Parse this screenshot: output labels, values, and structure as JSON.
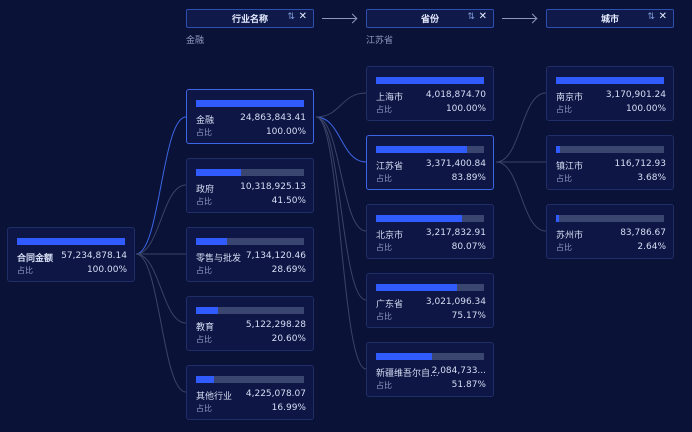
{
  "headers": [
    {
      "title": "行业名称",
      "sort_icon": "⇅",
      "close_icon": "✕",
      "filter": "金融"
    },
    {
      "title": "省份",
      "sort_icon": "⇅",
      "close_icon": "✕",
      "filter": "江苏省"
    },
    {
      "title": "城市",
      "sort_icon": "⇅",
      "close_icon": "✕",
      "filter": ""
    }
  ],
  "root": {
    "name": "合同金额",
    "value": "57,234,878.14",
    "ratio_label": "占比",
    "ratio": "100.00%",
    "fraction": 1.0
  },
  "industries": [
    {
      "name": "金融",
      "value": "24,863,843.41",
      "ratio_label": "占比",
      "ratio": "100.00%",
      "fraction": 1.0
    },
    {
      "name": "政府",
      "value": "10,318,925.13",
      "ratio_label": "占比",
      "ratio": "41.50%",
      "fraction": 0.415
    },
    {
      "name": "零售与批发",
      "value": "7,134,120.46",
      "ratio_label": "占比",
      "ratio": "28.69%",
      "fraction": 0.2869
    },
    {
      "name": "教育",
      "value": "5,122,298.28",
      "ratio_label": "占比",
      "ratio": "20.60%",
      "fraction": 0.206
    },
    {
      "name": "其他行业",
      "value": "4,225,078.07",
      "ratio_label": "占比",
      "ratio": "16.99%",
      "fraction": 0.1699
    }
  ],
  "provinces": [
    {
      "name": "上海市",
      "value": "4,018,874.70",
      "ratio_label": "占比",
      "ratio": "100.00%",
      "fraction": 1.0
    },
    {
      "name": "江苏省",
      "value": "3,371,400.84",
      "ratio_label": "占比",
      "ratio": "83.89%",
      "fraction": 0.8389
    },
    {
      "name": "北京市",
      "value": "3,217,832.91",
      "ratio_label": "占比",
      "ratio": "80.07%",
      "fraction": 0.8007
    },
    {
      "name": "广东省",
      "value": "3,021,096.34",
      "ratio_label": "占比",
      "ratio": "75.17%",
      "fraction": 0.7517
    },
    {
      "name": "新疆维吾尔自...",
      "value": "2,084,733...",
      "ratio_label": "占比",
      "ratio": "51.87%",
      "fraction": 0.5187
    }
  ],
  "cities": [
    {
      "name": "南京市",
      "value": "3,170,901.24",
      "ratio_label": "占比",
      "ratio": "100.00%",
      "fraction": 1.0
    },
    {
      "name": "镇江市",
      "value": "116,712.93",
      "ratio_label": "占比",
      "ratio": "3.68%",
      "fraction": 0.0368
    },
    {
      "name": "苏州市",
      "value": "83,786.67",
      "ratio_label": "占比",
      "ratio": "2.64%",
      "fraction": 0.0264
    }
  ],
  "colors": {
    "background": "#0b1238",
    "bar_fill": "#2f5bff",
    "bar_track": "#3a4670",
    "active_link": "#3c66e6",
    "link": "#3a4466"
  }
}
